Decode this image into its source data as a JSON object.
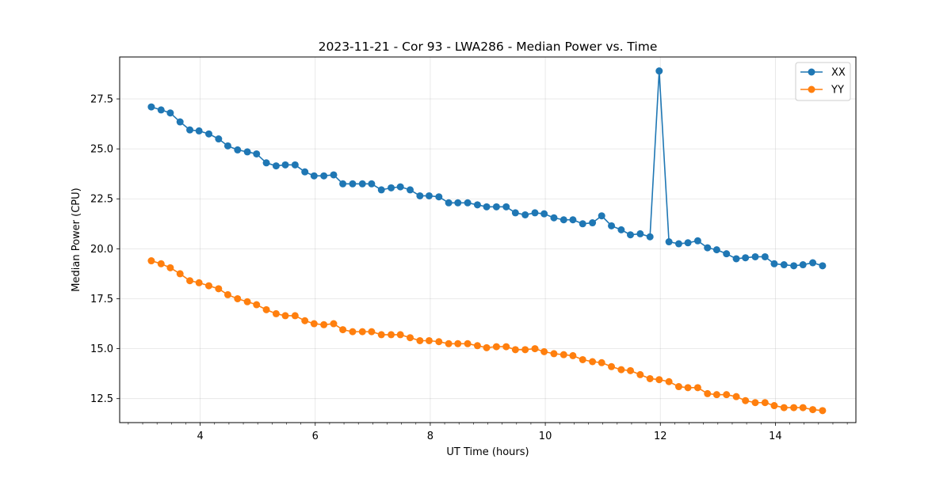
{
  "chart_data": {
    "type": "line",
    "title": "2023-11-21 - Cor 93 - LWA286 - Median Power vs. Time",
    "xlabel": "UT Time (hours)",
    "ylabel": "Median Power (CPU)",
    "xlim": [
      2.6,
      15.4
    ],
    "ylim": [
      11.3,
      29.6
    ],
    "xticks": [
      4,
      6,
      8,
      10,
      12,
      14
    ],
    "xtick_labels": [
      "4",
      "6",
      "8",
      "10",
      "12",
      "14"
    ],
    "yticks": [
      12.5,
      15.0,
      17.5,
      20.0,
      22.5,
      25.0,
      27.5
    ],
    "ytick_labels": [
      "12.5",
      "15.0",
      "17.5",
      "20.0",
      "22.5",
      "25.0",
      "27.5"
    ],
    "grid": true,
    "legend_position": "top-right",
    "x": [
      3.15,
      3.32,
      3.48,
      3.65,
      3.82,
      3.98,
      4.15,
      4.32,
      4.48,
      4.65,
      4.82,
      4.98,
      5.15,
      5.32,
      5.48,
      5.65,
      5.82,
      5.98,
      6.15,
      6.32,
      6.48,
      6.65,
      6.82,
      6.98,
      7.15,
      7.32,
      7.48,
      7.65,
      7.82,
      7.98,
      8.15,
      8.32,
      8.48,
      8.65,
      8.82,
      8.98,
      9.15,
      9.32,
      9.48,
      9.65,
      9.82,
      9.98,
      10.15,
      10.32,
      10.48,
      10.65,
      10.82,
      10.98,
      11.15,
      11.32,
      11.48,
      11.65,
      11.82,
      11.98,
      12.15,
      12.32,
      12.48,
      12.65,
      12.82,
      12.98,
      13.15,
      13.32,
      13.48,
      13.65,
      13.82,
      13.98,
      14.15,
      14.32,
      14.48,
      14.65,
      14.82
    ],
    "series": [
      {
        "name": "XX",
        "color": "#1f77b4",
        "values": [
          27.1,
          26.95,
          26.8,
          26.35,
          25.95,
          25.9,
          25.75,
          25.5,
          25.15,
          24.95,
          24.85,
          24.75,
          24.3,
          24.15,
          24.2,
          24.2,
          23.85,
          23.65,
          23.65,
          23.7,
          23.25,
          23.25,
          23.25,
          23.25,
          22.95,
          23.05,
          23.1,
          22.95,
          22.65,
          22.65,
          22.6,
          22.3,
          22.3,
          22.3,
          22.2,
          22.1,
          22.1,
          22.1,
          21.8,
          21.7,
          21.8,
          21.75,
          21.55,
          21.45,
          21.45,
          21.25,
          21.3,
          21.65,
          21.15,
          20.95,
          20.7,
          20.75,
          20.6,
          28.9,
          20.35,
          20.25,
          20.3,
          20.4,
          20.05,
          19.95,
          19.75,
          19.5,
          19.55,
          19.6,
          19.6,
          19.25,
          19.2,
          19.15,
          19.2,
          19.3,
          19.15
        ]
      },
      {
        "name": "YY",
        "color": "#ff7f0e",
        "values": [
          19.4,
          19.25,
          19.05,
          18.75,
          18.4,
          18.3,
          18.15,
          18.0,
          17.7,
          17.5,
          17.35,
          17.2,
          16.95,
          16.75,
          16.65,
          16.65,
          16.4,
          16.25,
          16.2,
          16.25,
          15.95,
          15.85,
          15.85,
          15.85,
          15.7,
          15.7,
          15.7,
          15.55,
          15.4,
          15.4,
          15.35,
          15.25,
          15.25,
          15.25,
          15.15,
          15.05,
          15.1,
          15.1,
          14.95,
          14.95,
          15.0,
          14.85,
          14.75,
          14.7,
          14.65,
          14.45,
          14.35,
          14.3,
          14.1,
          13.95,
          13.9,
          13.7,
          13.5,
          13.45,
          13.35,
          13.1,
          13.05,
          13.05,
          12.75,
          12.7,
          12.7,
          12.6,
          12.4,
          12.3,
          12.3,
          12.15,
          12.05,
          12.05,
          12.05,
          11.95,
          11.9
        ]
      }
    ]
  }
}
